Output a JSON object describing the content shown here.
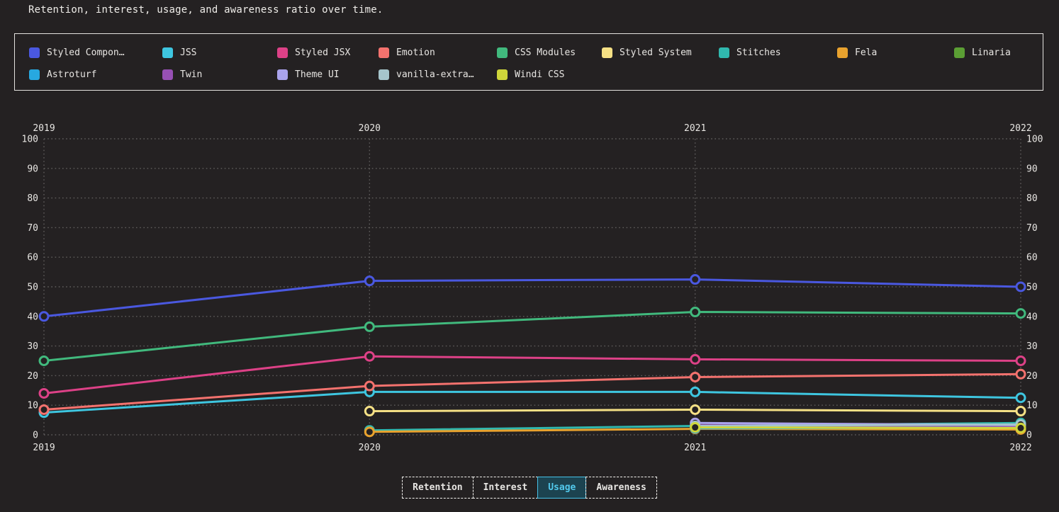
{
  "title": "Retention, interest, usage, and awareness ratio over time.",
  "theme": {
    "background": "#242122",
    "text_color": "#e8e6e3",
    "grid_color": "#5f5d5c",
    "legend_border": "#e4e2df",
    "active_button_color": "#47c2e8",
    "active_button_bg": "#1c4350"
  },
  "controls": {
    "buttons": [
      {
        "label": "Retention",
        "active": false
      },
      {
        "label": "Interest",
        "active": false
      },
      {
        "label": "Usage",
        "active": true
      },
      {
        "label": "Awareness",
        "active": false
      }
    ]
  },
  "chart_data": {
    "type": "line",
    "metric": "Usage",
    "x": [
      2019,
      2020,
      2021,
      2022
    ],
    "ylim": [
      0,
      100
    ],
    "ytick_step": 10,
    "grid": "dotted",
    "legend_position": "top",
    "series": [
      {
        "name": "Styled Components",
        "legend_label": "Styled Compon…",
        "color": "#4a58e0",
        "values": [
          40,
          52,
          52.5,
          50
        ]
      },
      {
        "name": "JSS",
        "legend_label": "JSS",
        "color": "#3ec6e0",
        "values": [
          7.5,
          14.5,
          14.5,
          12.5
        ]
      },
      {
        "name": "Styled JSX",
        "legend_label": "Styled JSX",
        "color": "#dd4187",
        "values": [
          14,
          26.5,
          25.5,
          25
        ]
      },
      {
        "name": "Emotion",
        "legend_label": "Emotion",
        "color": "#f4726e",
        "values": [
          8.5,
          16.5,
          19.5,
          20.5
        ]
      },
      {
        "name": "CSS Modules",
        "legend_label": "CSS Modules",
        "color": "#41b97d",
        "values": [
          25,
          36.5,
          41.5,
          41
        ]
      },
      {
        "name": "Styled System",
        "legend_label": "Styled System",
        "color": "#f5e085",
        "values": [
          null,
          8,
          8.5,
          8
        ]
      },
      {
        "name": "Stitches",
        "legend_label": "Stitches",
        "color": "#30b8ae",
        "values": [
          null,
          1.5,
          3,
          4
        ]
      },
      {
        "name": "Fela",
        "legend_label": "Fela",
        "color": "#e8a22e",
        "values": [
          null,
          1,
          2,
          1.8
        ]
      },
      {
        "name": "Linaria",
        "legend_label": "Linaria",
        "color": "#5b9e34",
        "values": [
          null,
          null,
          2.5,
          2.8
        ]
      },
      {
        "name": "Astroturf",
        "legend_label": "Astroturf",
        "color": "#27a8e0",
        "values": [
          null,
          null,
          2.2,
          2.5
        ]
      },
      {
        "name": "Twin",
        "legend_label": "Twin",
        "color": "#9750b4",
        "values": [
          null,
          null,
          3.2,
          3
        ]
      },
      {
        "name": "Theme UI",
        "legend_label": "Theme UI",
        "color": "#aaa3ec",
        "values": [
          null,
          null,
          4,
          3.3
        ]
      },
      {
        "name": "vanilla-extract",
        "legend_label": "vanilla-extra…",
        "color": "#a6c5cc",
        "values": [
          null,
          null,
          3,
          3.5
        ]
      },
      {
        "name": "Windi CSS",
        "legend_label": "Windi CSS",
        "color": "#cfd63a",
        "values": [
          null,
          null,
          2.5,
          2.3
        ]
      }
    ]
  }
}
